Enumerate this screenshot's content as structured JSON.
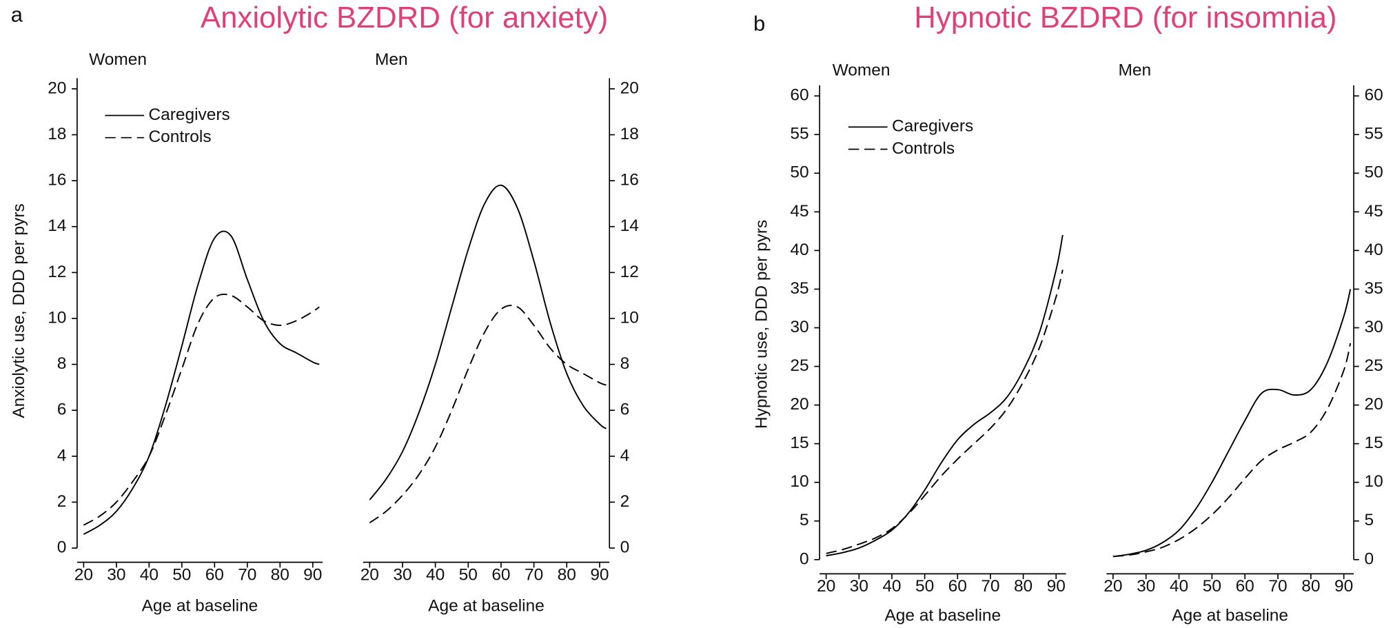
{
  "chart_data": [
    {
      "type": "line",
      "panel_label": "a",
      "title": "Anxiolytic BZDRD (for anxiety)",
      "subtitle": "Women",
      "ylabel": "Anxiolytic use, DDD per pyrs",
      "xlabel": "Age at baseline",
      "x": [
        20,
        25,
        30,
        35,
        40,
        45,
        50,
        55,
        60,
        65,
        70,
        75,
        80,
        85,
        90,
        92
      ],
      "series": [
        {
          "name": "Caregivers",
          "color": "#000000",
          "dash": "solid",
          "values": [
            0.6,
            1.0,
            1.6,
            2.6,
            4.0,
            6.2,
            8.8,
            11.5,
            13.5,
            13.6,
            11.7,
            9.9,
            8.9,
            8.5,
            8.1,
            8.0
          ]
        },
        {
          "name": "Controls",
          "color": "#000000",
          "dash": "dashed",
          "values": [
            1.0,
            1.4,
            2.0,
            2.9,
            4.0,
            5.8,
            7.8,
            9.8,
            10.9,
            11.0,
            10.5,
            9.9,
            9.7,
            9.9,
            10.3,
            10.5
          ]
        }
      ],
      "xlim": [
        18,
        93
      ],
      "xticks": [
        20,
        30,
        40,
        50,
        60,
        70,
        80,
        90
      ],
      "ylim": [
        0,
        20
      ],
      "yticks": [
        0,
        2,
        4,
        6,
        8,
        10,
        12,
        14,
        16,
        18,
        20
      ],
      "yaxis_side": "left",
      "legend": "upper left"
    },
    {
      "type": "line",
      "subtitle": "Men",
      "xlabel": "Age at baseline",
      "x": [
        20,
        25,
        30,
        35,
        40,
        45,
        50,
        55,
        60,
        65,
        70,
        75,
        80,
        85,
        90,
        92
      ],
      "series": [
        {
          "color": "#000000",
          "dash": "solid",
          "values": [
            2.1,
            3.0,
            4.2,
            5.9,
            8.0,
            10.5,
            13.0,
            15.0,
            15.8,
            14.8,
            12.5,
            9.8,
            7.6,
            6.2,
            5.4,
            5.2
          ]
        },
        {
          "color": "#000000",
          "dash": "dashed",
          "values": [
            1.1,
            1.6,
            2.3,
            3.2,
            4.4,
            6.0,
            7.8,
            9.4,
            10.4,
            10.5,
            9.7,
            8.7,
            8.0,
            7.6,
            7.2,
            7.1
          ]
        }
      ],
      "xlim": [
        18,
        93
      ],
      "xticks": [
        20,
        30,
        40,
        50,
        60,
        70,
        80,
        90
      ],
      "ylim": [
        0,
        20
      ],
      "yticks": [
        0,
        2,
        4,
        6,
        8,
        10,
        12,
        14,
        16,
        18,
        20
      ],
      "yaxis_side": "right"
    },
    {
      "type": "line",
      "panel_label": "b",
      "title": "Hypnotic BZDRD (for insomnia)",
      "subtitle": "Women",
      "ylabel": "Hypnotic use, DDD per pyrs",
      "xlabel": "Age at baseline",
      "x": [
        20,
        25,
        30,
        35,
        40,
        45,
        50,
        55,
        60,
        65,
        70,
        75,
        80,
        85,
        90,
        92
      ],
      "series": [
        {
          "name": "Caregivers",
          "color": "#000000",
          "dash": "solid",
          "values": [
            0.5,
            0.9,
            1.5,
            2.5,
            3.8,
            6.0,
            9.0,
            12.5,
            15.5,
            17.5,
            19.0,
            21.0,
            24.5,
            29.5,
            37.5,
            42
          ]
        },
        {
          "name": "Controls",
          "color": "#000000",
          "dash": "dashed",
          "values": [
            0.8,
            1.3,
            2.0,
            2.8,
            4.0,
            5.9,
            8.3,
            10.8,
            13.0,
            15.0,
            17.0,
            19.5,
            23,
            27.5,
            34,
            37.5
          ]
        }
      ],
      "xlim": [
        18,
        93
      ],
      "xticks": [
        20,
        30,
        40,
        50,
        60,
        70,
        80,
        90
      ],
      "ylim": [
        0,
        60
      ],
      "yticks": [
        0,
        5,
        10,
        15,
        20,
        25,
        30,
        35,
        40,
        45,
        50,
        55,
        60
      ],
      "yaxis_side": "left",
      "legend": "upper left"
    },
    {
      "type": "line",
      "subtitle": "Men",
      "xlabel": "Age at baseline",
      "x": [
        20,
        25,
        30,
        35,
        40,
        45,
        50,
        55,
        60,
        65,
        70,
        75,
        80,
        85,
        90,
        92
      ],
      "series": [
        {
          "color": "#000000",
          "dash": "solid",
          "values": [
            0.4,
            0.7,
            1.2,
            2.2,
            3.8,
            6.5,
            10.0,
            14.0,
            18.0,
            21.5,
            22.0,
            21.3,
            22.0,
            25.5,
            31.5,
            35
          ]
        },
        {
          "color": "#000000",
          "dash": "dashed",
          "values": [
            0.4,
            0.6,
            1.0,
            1.6,
            2.6,
            4.0,
            5.8,
            8.0,
            10.5,
            12.8,
            14.2,
            15.2,
            16.5,
            19.5,
            24.5,
            28
          ]
        }
      ],
      "xlim": [
        18,
        93
      ],
      "xticks": [
        20,
        30,
        40,
        50,
        60,
        70,
        80,
        90
      ],
      "ylim": [
        0,
        60
      ],
      "yticks": [
        0,
        5,
        10,
        15,
        20,
        25,
        30,
        35,
        40,
        45,
        50,
        55,
        60
      ],
      "yaxis_side": "right"
    }
  ]
}
